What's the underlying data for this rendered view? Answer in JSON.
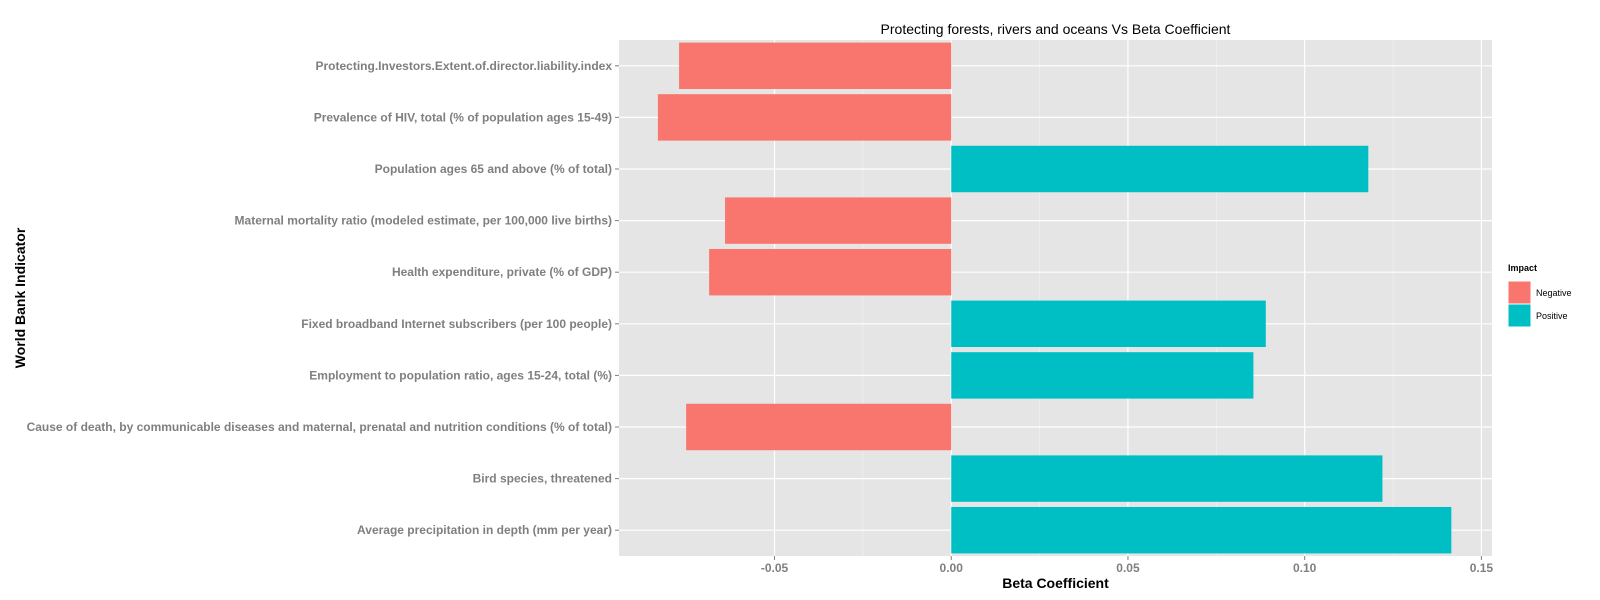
{
  "chart_data": {
    "type": "bar",
    "orientation": "horizontal",
    "title": "Protecting forests, rivers and oceans Vs Beta Coefficient",
    "xlabel": "Beta Coefficient",
    "ylabel": "World Bank Indicator",
    "xlim": [
      -0.094,
      0.153
    ],
    "x_ticks": [
      -0.05,
      0.0,
      0.05,
      0.1,
      0.15
    ],
    "x_tick_labels": [
      "-0.05",
      "0.00",
      "0.05",
      "0.10",
      "0.15"
    ],
    "grid": true,
    "legend": {
      "title": "Impact",
      "placement": "right",
      "entries": [
        {
          "label": "Negative",
          "color": "#F8766D"
        },
        {
          "label": "Positive",
          "color": "#00BFC4"
        }
      ]
    },
    "categories": [
      "Protecting.Investors.Extent.of.director.liability.index",
      "Prevalence of HIV, total (% of population ages 15-49)",
      "Population ages 65 and above (% of total)",
      "Maternal mortality ratio (modeled estimate, per 100,000 live births)",
      "Health expenditure, private (% of GDP)",
      "Fixed broadband Internet subscribers (per 100 people)",
      "Employment to population ratio, ages 15-24, total (%)",
      "Cause of death, by communicable diseases and maternal, prenatal and nutrition conditions (% of total)",
      "Bird species, threatened",
      "Average precipitation in depth (mm per year)"
    ],
    "values": [
      -0.077,
      -0.083,
      0.118,
      -0.064,
      -0.0685,
      0.089,
      0.0855,
      -0.075,
      0.122,
      0.1415
    ],
    "impact": [
      "Negative",
      "Negative",
      "Positive",
      "Negative",
      "Negative",
      "Positive",
      "Positive",
      "Negative",
      "Positive",
      "Positive"
    ],
    "colors": {
      "panel_background": "#E5E5E5",
      "grid_major": "#FFFFFF",
      "grid_minor": "#F2F2F2",
      "tick_text": "#7F7F7F"
    }
  }
}
